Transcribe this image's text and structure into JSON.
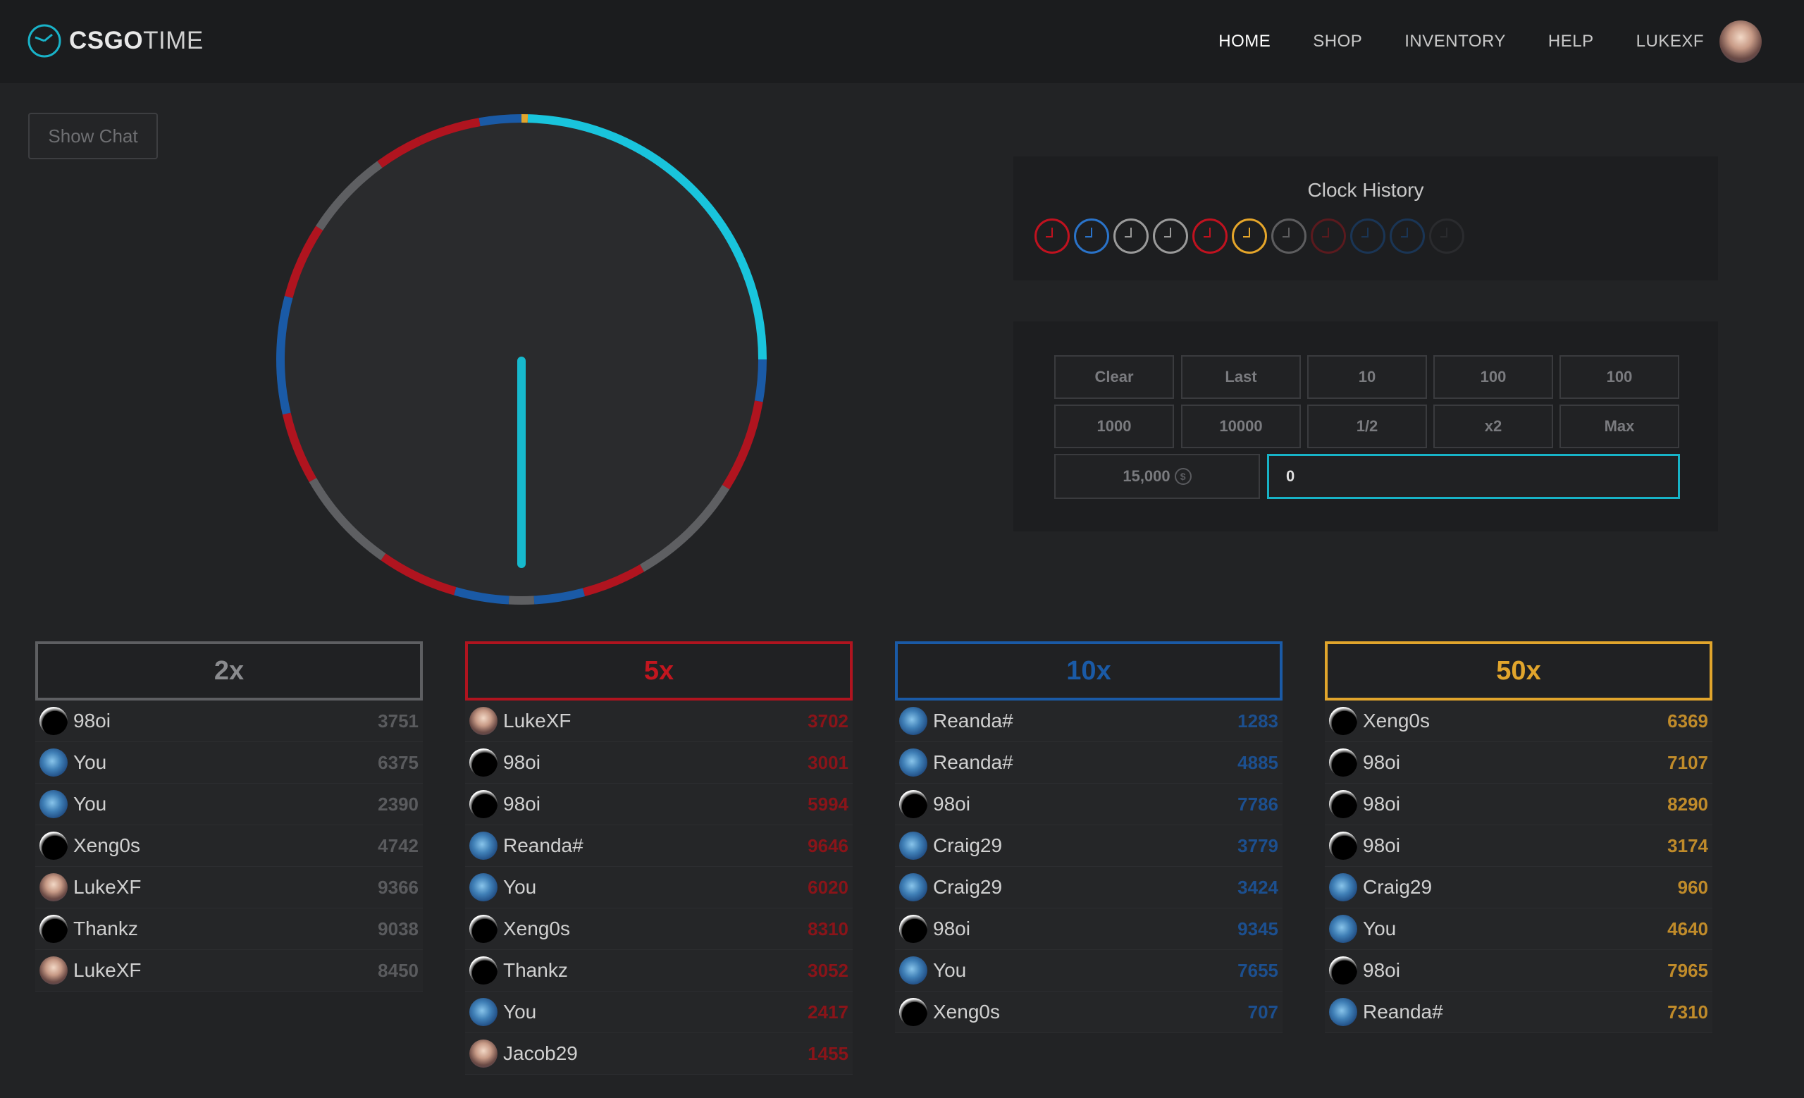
{
  "brand": {
    "bold": "CSGO",
    "light": "TIME"
  },
  "nav": {
    "home": "HOME",
    "shop": "SHOP",
    "inventory": "INVENTORY",
    "help": "HELP",
    "user": "LUKEXF"
  },
  "show_chat": "Show Chat",
  "history": {
    "title": "Clock History",
    "colors": [
      "#c0121f",
      "#2a73c9",
      "#9a9a9a",
      "#9a9a9a",
      "#c0121f",
      "#e6a62a",
      "#5d5d5f",
      "#5a1a1e",
      "#1a3555",
      "#1a3555",
      "#2a2b2e"
    ]
  },
  "bet_buttons": [
    "Clear",
    "Last",
    "10",
    "100",
    "100",
    "1000",
    "10000",
    "1/2",
    "x2",
    "Max"
  ],
  "balance": "15,000",
  "bet_value": "0",
  "colors": {
    "2x": "#5e5f62",
    "5x": "#b0141f",
    "10x": "#1a5aa6",
    "50x": "#e1a52c",
    "accent": "#19c4dc"
  },
  "columns": [
    {
      "label": "2x",
      "rows": [
        {
          "name": "98oi",
          "amount": "3751",
          "av": "dark"
        },
        {
          "name": "You",
          "amount": "6375",
          "av": "blue"
        },
        {
          "name": "You",
          "amount": "2390",
          "av": "blue"
        },
        {
          "name": "Xeng0s",
          "amount": "4742",
          "av": "dark"
        },
        {
          "name": "LukeXF",
          "amount": "9366",
          "av": "luke"
        },
        {
          "name": "Thankz",
          "amount": "9038",
          "av": "dark"
        },
        {
          "name": "LukeXF",
          "amount": "8450",
          "av": "luke"
        }
      ]
    },
    {
      "label": "5x",
      "rows": [
        {
          "name": "LukeXF",
          "amount": "3702",
          "av": "luke"
        },
        {
          "name": "98oi",
          "amount": "3001",
          "av": "dark"
        },
        {
          "name": "98oi",
          "amount": "5994",
          "av": "dark"
        },
        {
          "name": "Reanda#",
          "amount": "9646",
          "av": "blue"
        },
        {
          "name": "You",
          "amount": "6020",
          "av": "blue"
        },
        {
          "name": "Xeng0s",
          "amount": "8310",
          "av": "dark"
        },
        {
          "name": "Thankz",
          "amount": "3052",
          "av": "dark"
        },
        {
          "name": "You",
          "amount": "2417",
          "av": "blue"
        },
        {
          "name": "Jacob29",
          "amount": "1455",
          "av": "luke"
        }
      ]
    },
    {
      "label": "10x",
      "rows": [
        {
          "name": "Reanda#",
          "amount": "1283",
          "av": "blue"
        },
        {
          "name": "Reanda#",
          "amount": "4885",
          "av": "blue"
        },
        {
          "name": "98oi",
          "amount": "7786",
          "av": "dark"
        },
        {
          "name": "Craig29",
          "amount": "3779",
          "av": "blue"
        },
        {
          "name": "Craig29",
          "amount": "3424",
          "av": "blue"
        },
        {
          "name": "98oi",
          "amount": "9345",
          "av": "dark"
        },
        {
          "name": "You",
          "amount": "7655",
          "av": "blue"
        },
        {
          "name": "Xeng0s",
          "amount": "707",
          "av": "dark"
        }
      ]
    },
    {
      "label": "50x",
      "rows": [
        {
          "name": "Xeng0s",
          "amount": "6369",
          "av": "dark"
        },
        {
          "name": "98oi",
          "amount": "7107",
          "av": "dark"
        },
        {
          "name": "98oi",
          "amount": "8290",
          "av": "dark"
        },
        {
          "name": "98oi",
          "amount": "3174",
          "av": "dark"
        },
        {
          "name": "Craig29",
          "amount": "960",
          "av": "blue"
        },
        {
          "name": "You",
          "amount": "4640",
          "av": "blue"
        },
        {
          "name": "98oi",
          "amount": "7965",
          "av": "dark"
        },
        {
          "name": "Reanda#",
          "amount": "7310",
          "av": "blue"
        }
      ]
    }
  ]
}
